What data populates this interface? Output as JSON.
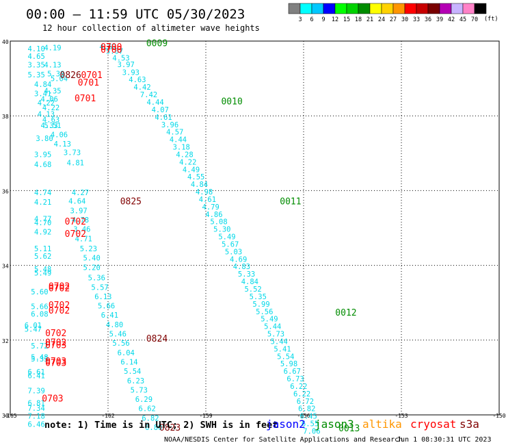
{
  "header": {
    "title": "00:00 – 11:59 UTC 05/30/2023",
    "subtitle": "12 hour collection of altimeter wave heights"
  },
  "colorbar": {
    "unit": "(ft)",
    "ticks": [
      "3",
      "6",
      "9",
      "12",
      "15",
      "18",
      "21",
      "24",
      "27",
      "30",
      "33",
      "36",
      "39",
      "42",
      "45",
      "70"
    ],
    "colors": [
      "#808080",
      "#00ffff",
      "#00c8ff",
      "#0000ff",
      "#00ff00",
      "#00d200",
      "#008c00",
      "#ffff00",
      "#ffd200",
      "#ff9600",
      "#ff0000",
      "#c80000",
      "#780000",
      "#b400b4",
      "#c8b4ff",
      "#ff82c8",
      "#000000"
    ]
  },
  "footer": {
    "note": "note: 1) Time is in UTC; 2) SWH is in feet",
    "credit": "NOAA/NESDIS Center for Satellite Applications and Research",
    "timestamp": "Jun  1 08:30:31 UTC 2023",
    "legend": [
      {
        "label": "jason2",
        "color": "#0000ff"
      },
      {
        "label": "jason3",
        "color": "#008c00"
      },
      {
        "label": "altika",
        "color": "#ff9600"
      },
      {
        "label": "cryosat",
        "color": "#ff0000"
      },
      {
        "label": "s3a",
        "color": "#800000"
      }
    ]
  },
  "chart_data": {
    "type": "scatter",
    "xlabel": "",
    "ylabel": "",
    "xlim": [
      -165,
      -150
    ],
    "ylim": [
      30,
      40
    ],
    "x_ticks": [
      -165,
      -162,
      -159,
      -156,
      -153,
      -150
    ],
    "x_tick_labels": [
      "-165",
      "-162",
      "-159",
      "-156",
      "-153",
      "-150"
    ],
    "y_ticks": [
      30,
      32,
      34,
      36,
      38,
      40
    ],
    "y_tick_labels": [
      "30",
      "32",
      "34",
      "36",
      "38",
      "40"
    ],
    "grid": true,
    "series": [
      {
        "name": "swh_west_track",
        "color": "#00d8e8",
        "points": [
          {
            "x": -164.2,
            "y": 39.8,
            "label": "4.10"
          },
          {
            "x": -163.7,
            "y": 39.83,
            "label": "4.19"
          },
          {
            "x": -164.2,
            "y": 39.6,
            "label": "4.65"
          },
          {
            "x": -164.2,
            "y": 39.37,
            "label": "3.35"
          },
          {
            "x": -163.7,
            "y": 39.37,
            "label": "4.13"
          },
          {
            "x": -164.2,
            "y": 39.1,
            "label": "5.35"
          },
          {
            "x": -164.0,
            "y": 38.85,
            "label": "4.84"
          },
          {
            "x": -164.0,
            "y": 38.6,
            "label": "3.41"
          },
          {
            "x": -163.9,
            "y": 38.35,
            "label": "4.22"
          },
          {
            "x": -163.9,
            "y": 38.05,
            "label": "4.13"
          },
          {
            "x": -163.7,
            "y": 37.75,
            "label": "5.51"
          },
          {
            "x": -163.5,
            "y": 37.5,
            "label": "4.06"
          },
          {
            "x": -163.95,
            "y": 37.4,
            "label": "3.80"
          },
          {
            "x": -163.4,
            "y": 37.25,
            "label": "4.13"
          },
          {
            "x": -164.0,
            "y": 36.97,
            "label": "3.95"
          },
          {
            "x": -163.1,
            "y": 37.02,
            "label": "3.73"
          },
          {
            "x": -163.0,
            "y": 36.75,
            "label": "4.81"
          },
          {
            "x": -164.0,
            "y": 36.7,
            "label": "4.68"
          },
          {
            "x": -164.0,
            "y": 35.95,
            "label": "4.74"
          },
          {
            "x": -164.0,
            "y": 35.7,
            "label": "4.21"
          },
          {
            "x": -164.0,
            "y": 35.25,
            "label": "4.77"
          },
          {
            "x": -164.0,
            "y": 35.15,
            "label": "4.70"
          },
          {
            "x": -164.0,
            "y": 34.9,
            "label": "4.92"
          },
          {
            "x": -164.0,
            "y": 34.45,
            "label": "5.11"
          },
          {
            "x": -164.0,
            "y": 34.25,
            "label": "5.62"
          },
          {
            "x": -164.0,
            "y": 33.9,
            "label": "5.48"
          },
          {
            "x": -164.0,
            "y": 33.8,
            "label": "5.49"
          },
          {
            "x": -164.1,
            "y": 33.3,
            "label": "5.60"
          },
          {
            "x": -164.1,
            "y": 32.9,
            "label": "5.66"
          },
          {
            "x": -164.1,
            "y": 32.7,
            "label": "6.08"
          },
          {
            "x": -164.3,
            "y": 32.4,
            "label": "6.01"
          },
          {
            "x": -164.3,
            "y": 32.3,
            "label": "5.47"
          },
          {
            "x": -164.1,
            "y": 31.85,
            "label": "5.72"
          },
          {
            "x": -164.1,
            "y": 31.55,
            "label": "5.48"
          },
          {
            "x": -164.1,
            "y": 31.5,
            "label": "5.33"
          },
          {
            "x": -164.2,
            "y": 31.15,
            "label": "6.61"
          },
          {
            "x": -164.2,
            "y": 31.05,
            "label": "6.41"
          },
          {
            "x": -164.2,
            "y": 30.65,
            "label": "7.39"
          },
          {
            "x": -164.2,
            "y": 30.32,
            "label": "6.81"
          },
          {
            "x": -164.2,
            "y": 30.18,
            "label": "7.34"
          },
          {
            "x": -164.2,
            "y": 29.97,
            "label": "7.18"
          },
          {
            "x": -164.2,
            "y": 29.75,
            "label": "6.46"
          }
        ]
      },
      {
        "name": "swh_center_track",
        "color": "#00d8e8",
        "points": [
          {
            "x": -163.6,
            "y": 39.13,
            "label": "5.38"
          },
          {
            "x": -163.5,
            "y": 39.0,
            "label": "5.04"
          },
          {
            "x": -163.7,
            "y": 38.67,
            "label": "4.35"
          },
          {
            "x": -163.8,
            "y": 38.45,
            "label": "4.06"
          },
          {
            "x": -163.75,
            "y": 38.22,
            "label": "4.22"
          },
          {
            "x": -163.75,
            "y": 37.9,
            "label": "4.63"
          },
          {
            "x": -163.8,
            "y": 37.75,
            "label": "4.33"
          },
          {
            "x": -162.85,
            "y": 35.95,
            "label": "4.27"
          },
          {
            "x": -162.95,
            "y": 35.72,
            "label": "4.64"
          },
          {
            "x": -162.9,
            "y": 35.47,
            "label": "3.97"
          },
          {
            "x": -162.85,
            "y": 35.22,
            "label": "4.78"
          },
          {
            "x": -162.8,
            "y": 34.97,
            "label": "3.46"
          },
          {
            "x": -162.75,
            "y": 34.72,
            "label": "4.71"
          },
          {
            "x": -162.6,
            "y": 34.45,
            "label": "5.23"
          },
          {
            "x": -162.5,
            "y": 34.2,
            "label": "5.40"
          },
          {
            "x": -162.5,
            "y": 33.95,
            "label": "5.20"
          },
          {
            "x": -162.35,
            "y": 33.67,
            "label": "5.36"
          },
          {
            "x": -162.25,
            "y": 33.42,
            "label": "5.57"
          },
          {
            "x": -162.15,
            "y": 33.17,
            "label": "6.13"
          },
          {
            "x": -162.05,
            "y": 32.92,
            "label": "5.66"
          },
          {
            "x": -161.95,
            "y": 32.67,
            "label": "6.41"
          },
          {
            "x": -161.8,
            "y": 32.42,
            "label": "4.80"
          },
          {
            "x": -161.7,
            "y": 32.17,
            "label": "5.46"
          },
          {
            "x": -161.6,
            "y": 31.92,
            "label": "5.56"
          },
          {
            "x": -161.45,
            "y": 31.67,
            "label": "6.04"
          },
          {
            "x": -161.35,
            "y": 31.42,
            "label": "6.14"
          },
          {
            "x": -161.25,
            "y": 31.17,
            "label": "5.54"
          },
          {
            "x": -161.15,
            "y": 30.92,
            "label": "6.23"
          },
          {
            "x": -161.05,
            "y": 30.67,
            "label": "5.73"
          },
          {
            "x": -160.9,
            "y": 30.42,
            "label": "6.29"
          },
          {
            "x": -160.8,
            "y": 30.17,
            "label": "6.62"
          },
          {
            "x": -160.7,
            "y": 29.92,
            "label": "6.82"
          },
          {
            "x": -160.6,
            "y": 29.67,
            "label": "6.80"
          }
        ]
      },
      {
        "name": "swh_diagonal_track",
        "color": "#00d8e8",
        "points": [
          {
            "x": -162.0,
            "y": 39.85,
            "label": "4.62"
          },
          {
            "x": -161.8,
            "y": 39.73,
            "label": "5.07"
          },
          {
            "x": -161.6,
            "y": 39.55,
            "label": "4.53"
          },
          {
            "x": -161.45,
            "y": 39.38,
            "label": "3.97"
          },
          {
            "x": -161.3,
            "y": 39.17,
            "label": "3.93"
          },
          {
            "x": -161.1,
            "y": 38.97,
            "label": "4.63"
          },
          {
            "x": -160.95,
            "y": 38.77,
            "label": "4.42"
          },
          {
            "x": -160.75,
            "y": 38.57,
            "label": "7.42"
          },
          {
            "x": -160.55,
            "y": 38.37,
            "label": "4.44"
          },
          {
            "x": -160.4,
            "y": 38.17,
            "label": "4.07"
          },
          {
            "x": -160.3,
            "y": 37.97,
            "label": "4.61"
          },
          {
            "x": -160.1,
            "y": 37.77,
            "label": "3.96"
          },
          {
            "x": -159.95,
            "y": 37.57,
            "label": "4.57"
          },
          {
            "x": -159.85,
            "y": 37.37,
            "label": "4.44"
          },
          {
            "x": -159.75,
            "y": 37.17,
            "label": "3.18"
          },
          {
            "x": -159.65,
            "y": 36.97,
            "label": "4.28"
          },
          {
            "x": -159.55,
            "y": 36.77,
            "label": "4.22"
          },
          {
            "x": -159.45,
            "y": 36.57,
            "label": "4.49"
          },
          {
            "x": -159.3,
            "y": 36.37,
            "label": "4.55"
          },
          {
            "x": -159.2,
            "y": 36.17,
            "label": "4.84"
          },
          {
            "x": -159.05,
            "y": 35.97,
            "label": "4.98"
          },
          {
            "x": -158.95,
            "y": 35.77,
            "label": "4.61"
          },
          {
            "x": -158.85,
            "y": 35.57,
            "label": "4.79"
          },
          {
            "x": -158.75,
            "y": 35.37,
            "label": "4.86"
          },
          {
            "x": -158.6,
            "y": 35.17,
            "label": "5.08"
          },
          {
            "x": -158.5,
            "y": 34.97,
            "label": "5.30"
          },
          {
            "x": -158.35,
            "y": 34.77,
            "label": "5.49"
          },
          {
            "x": -158.25,
            "y": 34.57,
            "label": "5.67"
          },
          {
            "x": -158.15,
            "y": 34.37,
            "label": "5.03"
          },
          {
            "x": -158.0,
            "y": 34.17,
            "label": "4.69"
          },
          {
            "x": -157.9,
            "y": 33.97,
            "label": "4.83"
          },
          {
            "x": -157.75,
            "y": 33.77,
            "label": "5.33"
          },
          {
            "x": -157.65,
            "y": 33.57,
            "label": "4.84"
          },
          {
            "x": -157.55,
            "y": 33.37,
            "label": "5.52"
          },
          {
            "x": -157.4,
            "y": 33.17,
            "label": "5.35"
          },
          {
            "x": -157.3,
            "y": 32.97,
            "label": "5.99"
          },
          {
            "x": -157.2,
            "y": 32.77,
            "label": "5.56"
          },
          {
            "x": -157.05,
            "y": 32.57,
            "label": "5.49"
          },
          {
            "x": -156.95,
            "y": 32.37,
            "label": "5.44"
          },
          {
            "x": -156.85,
            "y": 32.17,
            "label": "5.73"
          },
          {
            "x": -156.75,
            "y": 31.97,
            "label": "5.44"
          },
          {
            "x": -156.65,
            "y": 31.77,
            "label": "5.41"
          },
          {
            "x": -156.55,
            "y": 31.57,
            "label": "5.54"
          },
          {
            "x": -156.45,
            "y": 31.37,
            "label": "5.98"
          },
          {
            "x": -156.35,
            "y": 31.17,
            "label": "6.67"
          },
          {
            "x": -156.25,
            "y": 30.97,
            "label": "6.73"
          },
          {
            "x": -156.15,
            "y": 30.77,
            "label": "6.22"
          },
          {
            "x": -156.05,
            "y": 30.57,
            "label": "6.22"
          },
          {
            "x": -155.95,
            "y": 30.37,
            "label": "6.72"
          },
          {
            "x": -155.9,
            "y": 30.17,
            "label": "6.82"
          },
          {
            "x": -155.85,
            "y": 29.97,
            "label": "6.45"
          },
          {
            "x": -155.8,
            "y": 29.77,
            "label": "6.55"
          },
          {
            "x": -155.75,
            "y": 29.57,
            "label": "7.06"
          }
        ]
      }
    ],
    "time_labels": [
      {
        "x": -161.9,
        "y": 39.85,
        "label": "0700",
        "color": "#ff0000"
      },
      {
        "x": -161.9,
        "y": 39.78,
        "label": "0700",
        "color": "#ff0000"
      },
      {
        "x": -160.5,
        "y": 39.95,
        "label": "0009",
        "color": "#008c00"
      },
      {
        "x": -163.15,
        "y": 39.1,
        "label": "0826",
        "color": "#800000"
      },
      {
        "x": -162.5,
        "y": 39.1,
        "label": "0701",
        "color": "#ff0000"
      },
      {
        "x": -162.6,
        "y": 38.9,
        "label": "0701",
        "color": "#ff0000"
      },
      {
        "x": -162.7,
        "y": 38.48,
        "label": "0701",
        "color": "#ff0000"
      },
      {
        "x": -158.2,
        "y": 38.4,
        "label": "0010",
        "color": "#008c00"
      },
      {
        "x": -161.3,
        "y": 35.72,
        "label": "0825",
        "color": "#800000"
      },
      {
        "x": -156.4,
        "y": 35.72,
        "label": "0011",
        "color": "#008c00"
      },
      {
        "x": -163.0,
        "y": 35.18,
        "label": "0702",
        "color": "#ff0000"
      },
      {
        "x": -163.0,
        "y": 34.85,
        "label": "0702",
        "color": "#ff0000"
      },
      {
        "x": -163.5,
        "y": 33.45,
        "label": "0702",
        "color": "#ff0000"
      },
      {
        "x": -163.5,
        "y": 33.4,
        "label": "0702",
        "color": "#ff0000"
      },
      {
        "x": -163.5,
        "y": 32.95,
        "label": "0702",
        "color": "#ff0000"
      },
      {
        "x": -163.5,
        "y": 32.8,
        "label": "0702",
        "color": "#ff0000"
      },
      {
        "x": -154.7,
        "y": 32.75,
        "label": "0012",
        "color": "#008c00"
      },
      {
        "x": -163.6,
        "y": 32.2,
        "label": "0702",
        "color": "#ff0000"
      },
      {
        "x": -163.6,
        "y": 31.95,
        "label": "0702",
        "color": "#ff0000"
      },
      {
        "x": -163.6,
        "y": 31.88,
        "label": "0703",
        "color": "#ff0000"
      },
      {
        "x": -160.5,
        "y": 32.05,
        "label": "0824",
        "color": "#800000"
      },
      {
        "x": -163.6,
        "y": 31.45,
        "label": "0703",
        "color": "#ff0000"
      },
      {
        "x": -163.6,
        "y": 31.4,
        "label": "0703",
        "color": "#ff0000"
      },
      {
        "x": -163.7,
        "y": 30.45,
        "label": "0703",
        "color": "#ff0000"
      },
      {
        "x": -160.1,
        "y": 29.67,
        "label": "0823",
        "color": "#800000"
      },
      {
        "x": -154.6,
        "y": 29.65,
        "label": "0013",
        "color": "#008c00"
      }
    ]
  }
}
